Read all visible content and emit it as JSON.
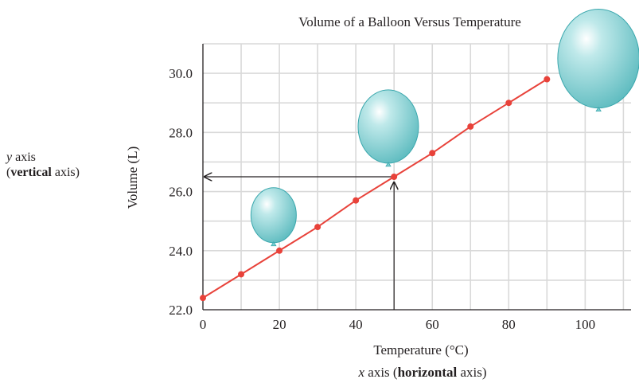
{
  "chart_data": {
    "type": "line",
    "title": "Volume of a Balloon Versus Temperature",
    "xlabel": "Temperature (°C)",
    "ylabel": "Volume (L)",
    "xlim": [
      0,
      112
    ],
    "ylim": [
      22.0,
      31.0
    ],
    "x_ticks": [
      "0",
      "20",
      "40",
      "60",
      "80",
      "100"
    ],
    "y_ticks": [
      "22.0",
      "24.0",
      "26.0",
      "28.0",
      "30.0"
    ],
    "grid": true,
    "series": [
      {
        "x": [
          0,
          10,
          20,
          30,
          40,
          50,
          60,
          70,
          80,
          90
        ],
        "values": [
          22.4,
          23.2,
          24.0,
          24.8,
          25.7,
          26.5,
          27.3,
          28.2,
          29.0,
          29.8
        ],
        "color": "#e8423a"
      }
    ],
    "annotations": {
      "read_off": {
        "x": 50,
        "y": 26.5
      },
      "balloons": [
        {
          "x": 18.5,
          "y": 25.2,
          "scale": 0.75
        },
        {
          "x": 48.5,
          "y": 28.2,
          "scale": 1.0
        },
        {
          "x": 103.5,
          "y": 30.5,
          "scale": 1.35
        }
      ],
      "balloon_color": "#7ccfd2"
    }
  },
  "labels": {
    "y_axis_prefix": "y",
    "y_axis_word": "axis",
    "y_axis_paren_open": "(",
    "y_axis_bold": "vertical",
    "y_axis_rest": "axis)",
    "x_axis_prefix": "x",
    "x_axis_word": "axis",
    "x_axis_paren_open": "(",
    "x_axis_bold": "horizontal",
    "x_axis_rest": "axis)"
  }
}
